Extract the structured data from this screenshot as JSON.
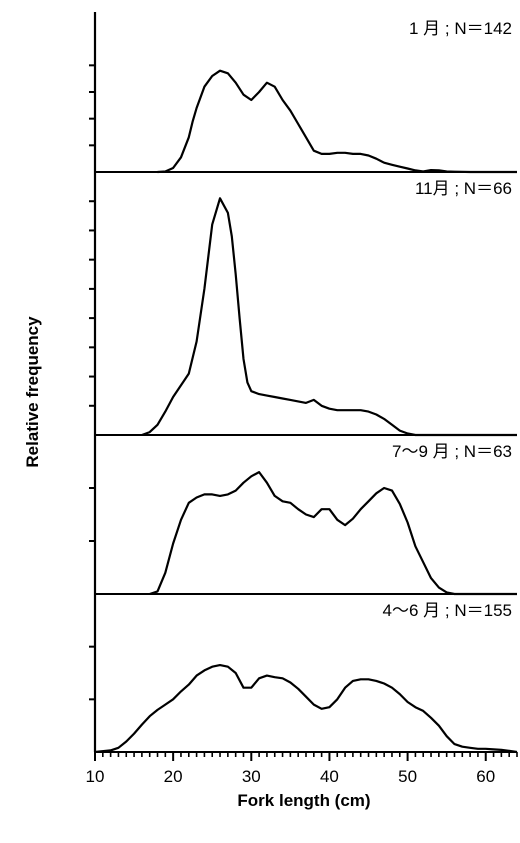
{
  "chart_data": {
    "type": "area",
    "xlabel": "Fork length (cm)",
    "ylabel": "Relative frequency",
    "xlim": [
      10,
      64
    ],
    "xticks": [
      10,
      20,
      30,
      40,
      50,
      60
    ],
    "x_minor_step": 1,
    "grid": false,
    "legend": "none",
    "line_color": "#000000",
    "panels": [
      {
        "label": "1 月 ; N＝142",
        "ylim": [
          0,
          6
        ],
        "yticks": [
          1,
          2,
          3,
          4
        ],
        "points": [
          [
            18,
            0
          ],
          [
            19,
            0.02
          ],
          [
            20,
            0.15
          ],
          [
            21,
            0.55
          ],
          [
            22,
            1.3
          ],
          [
            22.5,
            1.9
          ],
          [
            23,
            2.4
          ],
          [
            24,
            3.2
          ],
          [
            25,
            3.6
          ],
          [
            26,
            3.8
          ],
          [
            27,
            3.7
          ],
          [
            28,
            3.35
          ],
          [
            29,
            2.9
          ],
          [
            30,
            2.7
          ],
          [
            31,
            3.0
          ],
          [
            32,
            3.35
          ],
          [
            33,
            3.2
          ],
          [
            34,
            2.7
          ],
          [
            35,
            2.3
          ],
          [
            36,
            1.8
          ],
          [
            37,
            1.3
          ],
          [
            38,
            0.8
          ],
          [
            39,
            0.68
          ],
          [
            40,
            0.68
          ],
          [
            41,
            0.72
          ],
          [
            42,
            0.72
          ],
          [
            43,
            0.68
          ],
          [
            44,
            0.68
          ],
          [
            45,
            0.62
          ],
          [
            46,
            0.5
          ],
          [
            47,
            0.35
          ],
          [
            48,
            0.27
          ],
          [
            49,
            0.2
          ],
          [
            50,
            0.13
          ],
          [
            51,
            0.06
          ],
          [
            52,
            0.02
          ],
          [
            53,
            0.07
          ],
          [
            54,
            0.06
          ],
          [
            55,
            0.02
          ],
          [
            56,
            0.01
          ],
          [
            58,
            0
          ],
          [
            64,
            0
          ]
        ]
      },
      {
        "label": "11月 ; N＝66",
        "ylim": [
          0,
          9
        ],
        "yticks": [
          1,
          2,
          3,
          4,
          5,
          6,
          7,
          8
        ],
        "points": [
          [
            16,
            0
          ],
          [
            17,
            0.1
          ],
          [
            18,
            0.35
          ],
          [
            19,
            0.8
          ],
          [
            20,
            1.3
          ],
          [
            21,
            1.7
          ],
          [
            22,
            2.1
          ],
          [
            23,
            3.2
          ],
          [
            24,
            5.0
          ],
          [
            25,
            7.2
          ],
          [
            26,
            8.1
          ],
          [
            27,
            7.6
          ],
          [
            27.5,
            6.8
          ],
          [
            28,
            5.5
          ],
          [
            28.5,
            4.0
          ],
          [
            29,
            2.6
          ],
          [
            29.5,
            1.8
          ],
          [
            30,
            1.5
          ],
          [
            31,
            1.4
          ],
          [
            32,
            1.35
          ],
          [
            33,
            1.3
          ],
          [
            34,
            1.25
          ],
          [
            35,
            1.2
          ],
          [
            36,
            1.15
          ],
          [
            37,
            1.1
          ],
          [
            38,
            1.2
          ],
          [
            39,
            1.0
          ],
          [
            40,
            0.9
          ],
          [
            41,
            0.85
          ],
          [
            42,
            0.85
          ],
          [
            43,
            0.85
          ],
          [
            44,
            0.85
          ],
          [
            45,
            0.8
          ],
          [
            46,
            0.7
          ],
          [
            47,
            0.55
          ],
          [
            48,
            0.35
          ],
          [
            49,
            0.15
          ],
          [
            50,
            0.05
          ],
          [
            51,
            0
          ],
          [
            64,
            0
          ]
        ]
      },
      {
        "label": "7～9 月 ; N＝63",
        "ylim": [
          0,
          3
        ],
        "yticks": [
          1,
          2
        ],
        "points": [
          [
            17,
            0
          ],
          [
            18,
            0.05
          ],
          [
            19,
            0.4
          ],
          [
            20,
            0.95
          ],
          [
            21,
            1.4
          ],
          [
            22,
            1.72
          ],
          [
            23,
            1.82
          ],
          [
            24,
            1.88
          ],
          [
            25,
            1.88
          ],
          [
            26,
            1.85
          ],
          [
            27,
            1.88
          ],
          [
            28,
            1.95
          ],
          [
            29,
            2.1
          ],
          [
            30,
            2.22
          ],
          [
            31,
            2.3
          ],
          [
            32,
            2.1
          ],
          [
            33,
            1.85
          ],
          [
            34,
            1.75
          ],
          [
            35,
            1.72
          ],
          [
            36,
            1.6
          ],
          [
            37,
            1.5
          ],
          [
            38,
            1.45
          ],
          [
            39,
            1.6
          ],
          [
            40,
            1.6
          ],
          [
            41,
            1.4
          ],
          [
            42,
            1.3
          ],
          [
            43,
            1.42
          ],
          [
            44,
            1.6
          ],
          [
            45,
            1.75
          ],
          [
            46,
            1.9
          ],
          [
            47,
            2.0
          ],
          [
            48,
            1.95
          ],
          [
            49,
            1.7
          ],
          [
            50,
            1.35
          ],
          [
            51,
            0.9
          ],
          [
            52,
            0.6
          ],
          [
            53,
            0.3
          ],
          [
            54,
            0.12
          ],
          [
            55,
            0.03
          ],
          [
            56,
            0
          ],
          [
            64,
            0
          ]
        ]
      },
      {
        "label": "4～6 月 ; N＝155",
        "ylim": [
          0,
          3
        ],
        "yticks": [
          1,
          2
        ],
        "points": [
          [
            10,
            0
          ],
          [
            12,
            0.03
          ],
          [
            13,
            0.08
          ],
          [
            14,
            0.2
          ],
          [
            15,
            0.35
          ],
          [
            16,
            0.52
          ],
          [
            17,
            0.68
          ],
          [
            18,
            0.8
          ],
          [
            19,
            0.9
          ],
          [
            20,
            1.0
          ],
          [
            21,
            1.15
          ],
          [
            22,
            1.28
          ],
          [
            23,
            1.45
          ],
          [
            24,
            1.55
          ],
          [
            25,
            1.62
          ],
          [
            26,
            1.65
          ],
          [
            27,
            1.62
          ],
          [
            28,
            1.5
          ],
          [
            29,
            1.22
          ],
          [
            30,
            1.22
          ],
          [
            31,
            1.4
          ],
          [
            32,
            1.45
          ],
          [
            33,
            1.42
          ],
          [
            34,
            1.4
          ],
          [
            35,
            1.32
          ],
          [
            36,
            1.2
          ],
          [
            37,
            1.05
          ],
          [
            38,
            0.9
          ],
          [
            39,
            0.82
          ],
          [
            40,
            0.85
          ],
          [
            41,
            1.0
          ],
          [
            42,
            1.22
          ],
          [
            43,
            1.35
          ],
          [
            44,
            1.38
          ],
          [
            45,
            1.38
          ],
          [
            46,
            1.35
          ],
          [
            47,
            1.3
          ],
          [
            48,
            1.22
          ],
          [
            49,
            1.1
          ],
          [
            50,
            0.95
          ],
          [
            51,
            0.85
          ],
          [
            52,
            0.78
          ],
          [
            53,
            0.65
          ],
          [
            54,
            0.5
          ],
          [
            55,
            0.3
          ],
          [
            56,
            0.15
          ],
          [
            57,
            0.1
          ],
          [
            58,
            0.08
          ],
          [
            59,
            0.06
          ],
          [
            60,
            0.06
          ],
          [
            61,
            0.05
          ],
          [
            62,
            0.04
          ],
          [
            63,
            0.02
          ],
          [
            64,
            0
          ]
        ]
      }
    ]
  }
}
